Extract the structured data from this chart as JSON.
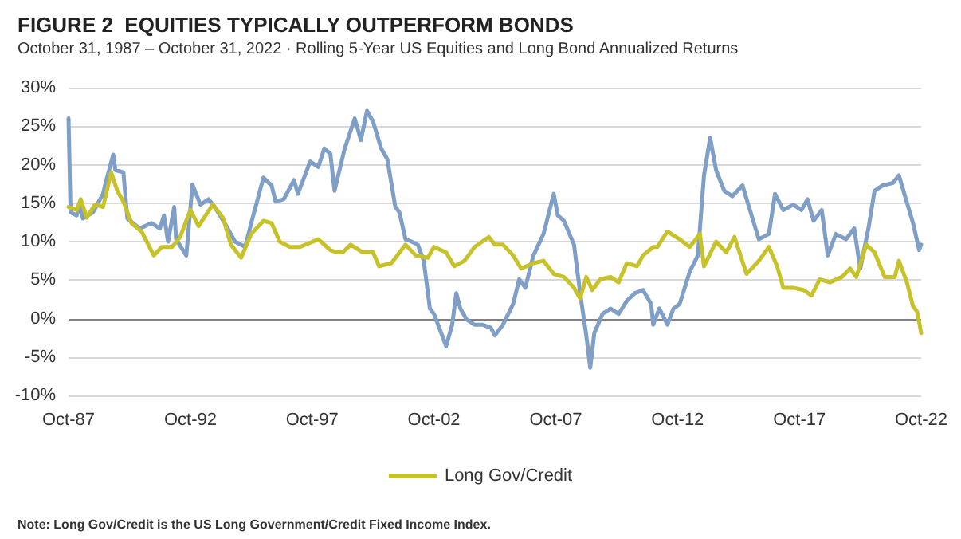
{
  "chart_data": {
    "type": "line",
    "title": "FIGURE 2  EQUITIES TYPICALLY OUTPERFORM BONDS",
    "subtitle": "October 31, 1987 – October 31, 2022 · Rolling 5-Year US Equities and Long Bond Annualized Returns",
    "annotations": [
      "Note: Long Gov/Credit is the US Long Government/Credit Fixed Income Index."
    ],
    "xlim": [
      "1987-10",
      "2022-10"
    ],
    "xticks": [
      {
        "value": "1987-10",
        "label": "Oct-87"
      },
      {
        "value": "1992-10",
        "label": "Oct-92"
      },
      {
        "value": "1997-10",
        "label": "Oct-97"
      },
      {
        "value": "2002-10",
        "label": "Oct-02"
      },
      {
        "value": "2007-10",
        "label": "Oct-07"
      },
      {
        "value": "2012-10",
        "label": "Oct-12"
      },
      {
        "value": "2017-10",
        "label": "Oct-17"
      },
      {
        "value": "2022-10",
        "label": "Oct-22"
      }
    ],
    "ylim": [
      -10,
      30
    ],
    "yticks": [
      {
        "value": -10,
        "label": "-10%"
      },
      {
        "value": -5,
        "label": "-5%"
      },
      {
        "value": 0,
        "label": "0%"
      },
      {
        "value": 5,
        "label": "5%"
      },
      {
        "value": 10,
        "label": "10%"
      },
      {
        "value": 15,
        "label": "15%"
      },
      {
        "value": 20,
        "label": "20%"
      },
      {
        "value": 25,
        "label": "25%"
      },
      {
        "value": 30,
        "label": "30%"
      }
    ],
    "grid": "y",
    "legend": "bottom",
    "marker": "none",
    "line_style": "solid",
    "ref_lines": [
      {
        "axis": "y",
        "value": 0,
        "color": "#808080"
      }
    ],
    "series": [
      {
        "color": "#7f9fc6",
        "x": [
          "1987-10",
          "1987-11",
          "1988-02",
          "1988-04",
          "1988-05",
          "1988-10",
          "1989-03",
          "1989-05",
          "1989-08",
          "1989-09",
          "1990-01",
          "1990-03",
          "1990-09",
          "1991-03",
          "1991-07",
          "1991-09",
          "1991-11",
          "1992-02",
          "1992-03",
          "1992-08",
          "1992-11",
          "1993-03",
          "1993-07",
          "1993-10",
          "1994-03",
          "1994-08",
          "1995-01",
          "1995-04",
          "1995-10",
          "1996-02",
          "1996-04",
          "1996-08",
          "1997-01",
          "1997-03",
          "1997-09",
          "1998-01",
          "1998-04",
          "1998-07",
          "1998-09",
          "1999-02",
          "1999-07",
          "1999-10",
          "2000-01",
          "2000-04",
          "2000-08",
          "2000-11",
          "2001-03",
          "2001-05",
          "2001-08",
          "2001-11",
          "2002-02",
          "2002-05",
          "2002-08",
          "2002-10",
          "2003-01",
          "2003-04",
          "2003-07",
          "2003-09",
          "2003-11",
          "2004-02",
          "2004-06",
          "2004-10",
          "2005-02",
          "2005-04",
          "2005-08",
          "2006-01",
          "2006-04",
          "2006-07",
          "2006-11",
          "2007-04",
          "2007-09",
          "2007-11",
          "2008-02",
          "2008-07",
          "2008-10",
          "2009-01",
          "2009-03",
          "2009-05",
          "2009-09",
          "2010-01",
          "2010-05",
          "2010-09",
          "2011-01",
          "2011-05",
          "2011-09",
          "2011-10",
          "2012-01",
          "2012-05",
          "2012-08",
          "2012-11",
          "2013-04",
          "2013-08",
          "2013-11",
          "2014-02",
          "2014-05",
          "2014-09",
          "2015-01",
          "2015-06",
          "2015-10",
          "2016-02",
          "2016-07",
          "2016-10",
          "2017-02",
          "2017-07",
          "2017-11",
          "2018-02",
          "2018-05",
          "2018-09",
          "2018-12",
          "2019-04",
          "2019-09",
          "2020-01",
          "2020-04",
          "2020-08",
          "2020-11",
          "2021-03",
          "2021-08",
          "2021-11",
          "2022-02",
          "2022-06",
          "2022-09",
          "2022-10"
        ],
        "values": [
          26,
          13.8,
          13.4,
          15,
          13,
          13.8,
          16.2,
          18.3,
          21.3,
          19.3,
          19,
          13,
          11.7,
          12.4,
          11.7,
          13.4,
          10,
          14.5,
          10.3,
          8.2,
          17.4,
          14.8,
          15.5,
          14.5,
          12.4,
          10,
          9.3,
          12.4,
          18.3,
          17.3,
          15.2,
          15.5,
          18,
          16.2,
          20.4,
          19.7,
          22.1,
          21.4,
          16.6,
          22.1,
          26,
          23.2,
          27,
          25.6,
          22.1,
          20.7,
          14.5,
          13.8,
          10.3,
          10,
          9.6,
          7.5,
          1.3,
          0.6,
          -1.5,
          -3.6,
          -0.8,
          3.3,
          1.3,
          -0.1,
          -0.8,
          -0.8,
          -1.2,
          -2.2,
          -0.8,
          1.9,
          5.1,
          4,
          8.2,
          11,
          16.2,
          13.4,
          12.7,
          9.6,
          3.3,
          -2.2,
          -6.4,
          -1.9,
          0.6,
          1.3,
          0.6,
          2.3,
          3.3,
          3.7,
          1.9,
          -0.8,
          1.3,
          -0.8,
          1.3,
          1.9,
          6.1,
          8.2,
          18.6,
          23.5,
          19.3,
          16.6,
          15.9,
          17.3,
          13.8,
          10.3,
          11,
          16.2,
          14.1,
          14.8,
          14.1,
          15.5,
          12.7,
          14.1,
          8.2,
          11,
          10.3,
          11.7,
          6.5,
          11.7,
          16.6,
          17.3,
          17.6,
          18.6,
          15.9,
          12.4,
          8.9,
          9.6
        ]
      },
      {
        "name": "Long Gov/Credit",
        "color": "#c8c22a",
        "x": [
          "1987-10",
          "1988-02",
          "1988-04",
          "1988-07",
          "1988-11",
          "1989-03",
          "1989-07",
          "1989-10",
          "1990-01",
          "1990-05",
          "1990-10",
          "1991-04",
          "1991-08",
          "1992-01",
          "1992-05",
          "1992-10",
          "1993-02",
          "1993-09",
          "1994-02",
          "1994-06",
          "1994-11",
          "1995-04",
          "1995-10",
          "1996-02",
          "1996-06",
          "1996-11",
          "1997-04",
          "1998-01",
          "1998-07",
          "1998-10",
          "1999-01",
          "1999-05",
          "1999-11",
          "2000-04",
          "2000-07",
          "2001-01",
          "2001-08",
          "2002-01",
          "2002-07",
          "2002-10",
          "2003-04",
          "2003-08",
          "2004-01",
          "2004-06",
          "2005-01",
          "2005-04",
          "2005-08",
          "2006-01",
          "2006-05",
          "2006-11",
          "2007-04",
          "2007-09",
          "2008-02",
          "2008-07",
          "2008-10",
          "2009-01",
          "2009-04",
          "2009-08",
          "2010-01",
          "2010-05",
          "2010-09",
          "2011-02",
          "2011-05",
          "2011-10",
          "2011-12",
          "2012-05",
          "2012-11",
          "2013-04",
          "2013-07",
          "2013-09",
          "2013-11",
          "2014-05",
          "2014-10",
          "2015-02",
          "2015-08",
          "2016-02",
          "2016-07",
          "2016-11",
          "2017-02",
          "2017-07",
          "2017-12",
          "2018-04",
          "2018-08",
          "2019-01",
          "2019-07",
          "2019-11",
          "2020-02",
          "2020-07",
          "2020-11",
          "2021-04",
          "2021-09",
          "2021-11",
          "2022-03",
          "2022-06",
          "2022-08",
          "2022-10"
        ],
        "values": [
          14.5,
          14.1,
          15.5,
          13.1,
          14.8,
          14.5,
          19,
          16.6,
          15.2,
          12.4,
          11.3,
          8.2,
          9.3,
          9.3,
          10.6,
          14.1,
          12,
          14.8,
          13.1,
          9.6,
          7.9,
          11,
          12.7,
          12.4,
          10,
          9.3,
          9.3,
          10.3,
          8.9,
          8.6,
          8.6,
          9.6,
          8.6,
          8.6,
          6.8,
          7.2,
          9.6,
          8.2,
          7.9,
          9.3,
          8.6,
          6.8,
          7.5,
          9.3,
          10.6,
          9.6,
          9.6,
          8.2,
          6.5,
          7.2,
          7.5,
          5.8,
          5.4,
          4,
          2.6,
          5.4,
          3.7,
          5.1,
          5.4,
          4.7,
          7.2,
          6.8,
          8.2,
          9.3,
          9.3,
          11.3,
          10.3,
          9.3,
          10.3,
          11,
          6.8,
          10,
          8.6,
          10.6,
          5.8,
          7.5,
          9.3,
          6.8,
          4,
          4,
          3.7,
          3,
          5.1,
          4.7,
          5.4,
          6.5,
          5.4,
          9.6,
          8.6,
          5.4,
          5.4,
          7.5,
          4.7,
          1.6,
          0.9,
          -1.9
        ]
      }
    ]
  }
}
